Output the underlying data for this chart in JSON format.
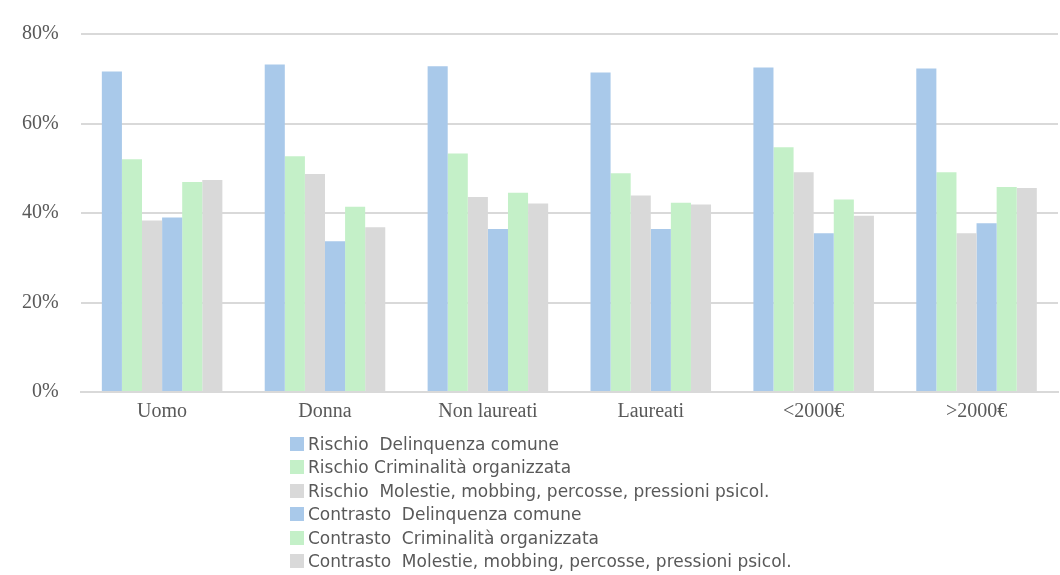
{
  "chart_data": {
    "type": "bar",
    "categories": [
      "Uomo",
      "Donna",
      "Non laureati",
      "Laureati",
      "<2000€",
      ">2000€"
    ],
    "series": [
      {
        "name": "Rischio  Delinquenza comune",
        "color": "#a9c9ea",
        "values": [
          71.6,
          73.2,
          72.8,
          71.4,
          72.5,
          72.3
        ]
      },
      {
        "name": "Rischio Criminalità organizzata",
        "color": "#c4f0c8",
        "values": [
          52,
          52.7,
          53.3,
          48.9,
          54.7,
          49.1
        ]
      },
      {
        "name": "Rischio  Molestie, mobbing, percosse, pressioni psicol.",
        "color": "#d9d9d9",
        "values": [
          38.3,
          48.7,
          43.6,
          43.9,
          49.1,
          35.5
        ]
      },
      {
        "name": "Contrasto  Delinquenza comune",
        "color": "#a9c9ea",
        "values": [
          39,
          33.7,
          36.4,
          36.4,
          35.5,
          37.7
        ]
      },
      {
        "name": "Contrasto  Criminalità organizzata",
        "color": "#c4f0c8",
        "values": [
          46.9,
          41.4,
          44.5,
          42.3,
          43,
          45.8
        ]
      },
      {
        "name": "Contrasto  Molestie, mobbing, percosse, pressioni psicol.",
        "color": "#d9d9d9",
        "values": [
          47.4,
          36.8,
          42.1,
          41.9,
          39.4,
          45.6
        ]
      }
    ],
    "ylim": [
      0,
      80
    ],
    "yticks": [
      {
        "value": 0,
        "label": "0%"
      },
      {
        "value": 20,
        "label": "20%"
      },
      {
        "value": 40,
        "label": "40%"
      },
      {
        "value": 60,
        "label": "60%"
      },
      {
        "value": 80,
        "label": "80%"
      }
    ],
    "grid": "y",
    "legend": "bottom"
  }
}
